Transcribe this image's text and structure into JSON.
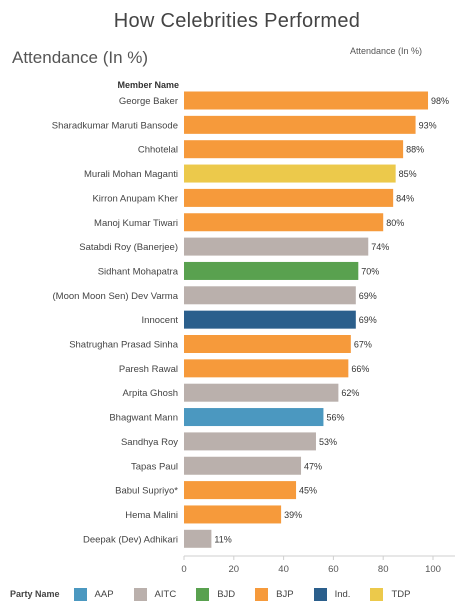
{
  "title": "How Celebrities Performed",
  "section_title": "Attendance (In %)",
  "column_header": "Attendance (In %)",
  "row_header": "Member Name",
  "legend": {
    "title": "Party Name",
    "items": [
      {
        "name": "AAP",
        "color": "#4b98c0"
      },
      {
        "name": "AITC",
        "color": "#bab0ac"
      },
      {
        "name": "BJD",
        "color": "#59a14f"
      },
      {
        "name": "BJP",
        "color": "#f69a3b"
      },
      {
        "name": "Ind.",
        "color": "#2b5f8c"
      },
      {
        "name": "TDP",
        "color": "#ecc94b"
      }
    ]
  },
  "chart_data": {
    "type": "bar",
    "orientation": "horizontal",
    "xlim": [
      0,
      100
    ],
    "xticks": [
      0,
      20,
      40,
      60,
      80,
      100
    ],
    "value_suffix": "%",
    "categories": [
      "George Baker",
      "Sharadkumar Maruti Bansode",
      "Chhotelal",
      "Murali Mohan Maganti",
      "Kirron Anupam Kher",
      "Manoj Kumar Tiwari",
      "Satabdi Roy (Banerjee)",
      "Sidhant Mohapatra",
      "(Moon Moon Sen) Dev Varma",
      "Innocent",
      "Shatrughan Prasad Sinha",
      "Paresh Rawal",
      "Arpita Ghosh",
      "Bhagwant Mann",
      "Sandhya Roy",
      "Tapas Paul",
      "Babul Supriyo*",
      "Hema Malini",
      "Deepak (Dev) Adhikari"
    ],
    "values": [
      98,
      93,
      88,
      85,
      84,
      80,
      74,
      70,
      69,
      69,
      67,
      66,
      62,
      56,
      53,
      47,
      45,
      39,
      11
    ],
    "party": [
      "BJP",
      "BJP",
      "BJP",
      "TDP",
      "BJP",
      "BJP",
      "AITC",
      "BJD",
      "AITC",
      "Ind.",
      "BJP",
      "BJP",
      "AITC",
      "AAP",
      "AITC",
      "AITC",
      "BJP",
      "BJP",
      "AITC"
    ],
    "grid": false,
    "legend_position": "bottom"
  }
}
